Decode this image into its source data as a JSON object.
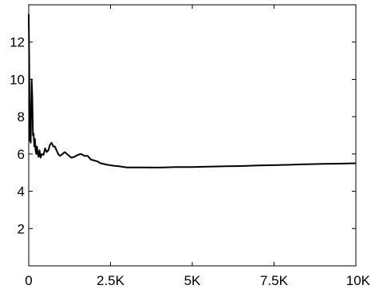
{
  "chart_data": {
    "type": "line",
    "title": "",
    "xlabel": "",
    "ylabel": "",
    "xlim": [
      0,
      10000
    ],
    "ylim": [
      0,
      14
    ],
    "grid": false,
    "line_color": "#000000",
    "x_ticks": [
      {
        "value": 0,
        "label": "0"
      },
      {
        "value": 2500,
        "label": "2.5K"
      },
      {
        "value": 5000,
        "label": "5K"
      },
      {
        "value": 7500,
        "label": "7.5K"
      },
      {
        "value": 10000,
        "label": "10K"
      }
    ],
    "y_ticks": [
      {
        "value": 2,
        "label": "2"
      },
      {
        "value": 4,
        "label": "4"
      },
      {
        "value": 6,
        "label": "6"
      },
      {
        "value": 8,
        "label": "8"
      },
      {
        "value": 10,
        "label": "10"
      },
      {
        "value": 12,
        "label": "12"
      }
    ],
    "series": [
      {
        "x": [
          0,
          15,
          30,
          45,
          60,
          75,
          90,
          110,
          130,
          150,
          170,
          190,
          210,
          230,
          250,
          270,
          300,
          330,
          360,
          400,
          450,
          500,
          550,
          600,
          650,
          700,
          750,
          800,
          850,
          900,
          950,
          1000,
          1100,
          1200,
          1300,
          1400,
          1500,
          1600,
          1700,
          1800,
          1900,
          2000,
          2100,
          2200,
          2400,
          2600,
          2800,
          3000,
          3500,
          4000,
          4500,
          5000,
          5500,
          6000,
          6500,
          7000,
          7500,
          8000,
          8500,
          9000,
          9500,
          10000
        ],
        "y": [
          13.5,
          11.0,
          6.7,
          8.0,
          6.6,
          8.6,
          10.0,
          9.0,
          7.0,
          7.1,
          6.4,
          6.8,
          6.2,
          6.0,
          6.4,
          6.1,
          5.85,
          6.2,
          5.8,
          6.0,
          5.95,
          6.3,
          6.1,
          6.2,
          6.5,
          6.6,
          6.4,
          6.4,
          6.2,
          6.0,
          5.9,
          5.95,
          6.1,
          5.95,
          5.8,
          5.85,
          5.95,
          6.0,
          5.9,
          5.9,
          5.7,
          5.65,
          5.6,
          5.5,
          5.42,
          5.37,
          5.33,
          5.28,
          5.28,
          5.27,
          5.3,
          5.3,
          5.32,
          5.34,
          5.35,
          5.38,
          5.4,
          5.42,
          5.45,
          5.47,
          5.48,
          5.5
        ]
      }
    ]
  }
}
